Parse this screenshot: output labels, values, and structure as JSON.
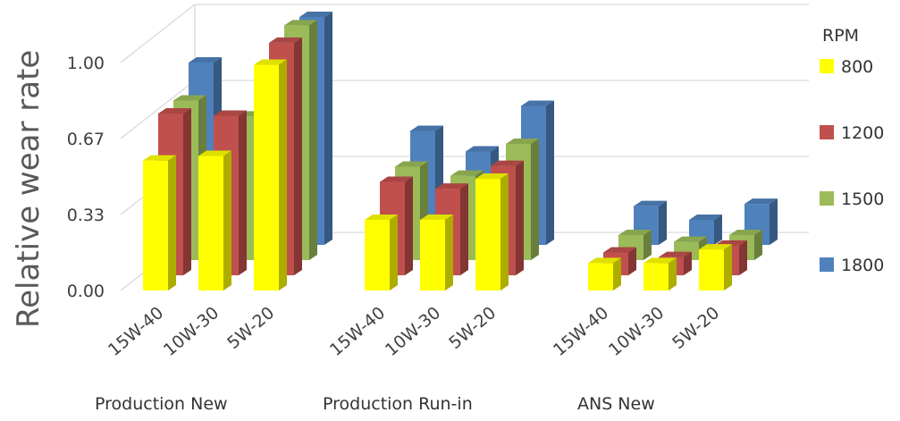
{
  "chart_data": {
    "type": "bar",
    "style": "3d-clustered",
    "ylabel": "Relative wear rate",
    "yticks": [
      "0.00",
      "0.33",
      "0.67",
      "1.00"
    ],
    "ylim": [
      0,
      1.0
    ],
    "grid": true,
    "legend": {
      "title": "RPM",
      "position": "right"
    },
    "groups": [
      {
        "label": "Production New",
        "categories": [
          "15W-40",
          "10W-30",
          "5W-20"
        ]
      },
      {
        "label": "Production Run-in",
        "categories": [
          "15W-40",
          "10W-30",
          "5W-20"
        ]
      },
      {
        "label": "ANS New",
        "categories": [
          "15W-40",
          "10W-30",
          "5W-20"
        ]
      }
    ],
    "series": [
      {
        "name": "800",
        "color": "#ffff00",
        "values": [
          0.57,
          0.59,
          0.99,
          0.31,
          0.31,
          0.49,
          0.12,
          0.12,
          0.18
        ]
      },
      {
        "name": "1200",
        "color": "#c0504d",
        "values": [
          0.71,
          0.7,
          1.02,
          0.41,
          0.38,
          0.48,
          0.1,
          0.08,
          0.13
        ]
      },
      {
        "name": "1500",
        "color": "#9bbb59",
        "values": [
          0.7,
          0.63,
          1.03,
          0.41,
          0.37,
          0.51,
          0.11,
          0.08,
          0.11
        ]
      },
      {
        "name": "1800",
        "color": "#4f81bd",
        "values": [
          0.8,
          0.49,
          1.0,
          0.5,
          0.41,
          0.61,
          0.17,
          0.11,
          0.18
        ]
      }
    ]
  }
}
